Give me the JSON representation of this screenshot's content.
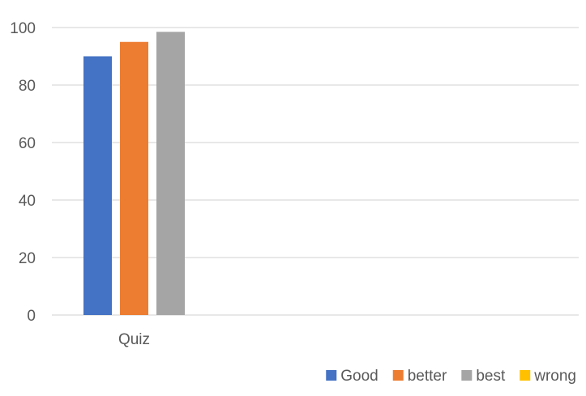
{
  "chart_data": {
    "type": "bar",
    "categories": [
      "Quiz"
    ],
    "series": [
      {
        "name": "Good",
        "values": [
          90
        ],
        "color": "#4472C4"
      },
      {
        "name": "better",
        "values": [
          95
        ],
        "color": "#ED7D31"
      },
      {
        "name": "best",
        "values": [
          98.5
        ],
        "color": "#A5A5A5"
      },
      {
        "name": "wrong",
        "values": [
          0
        ],
        "color": "#FFC000"
      }
    ],
    "ylim": [
      0,
      100
    ],
    "yticks": [
      0,
      20,
      40,
      60,
      80,
      100
    ],
    "grid": true,
    "legend_position": "bottom-right",
    "gridline_color": "#D9D9D9",
    "text_color": "#595959"
  }
}
